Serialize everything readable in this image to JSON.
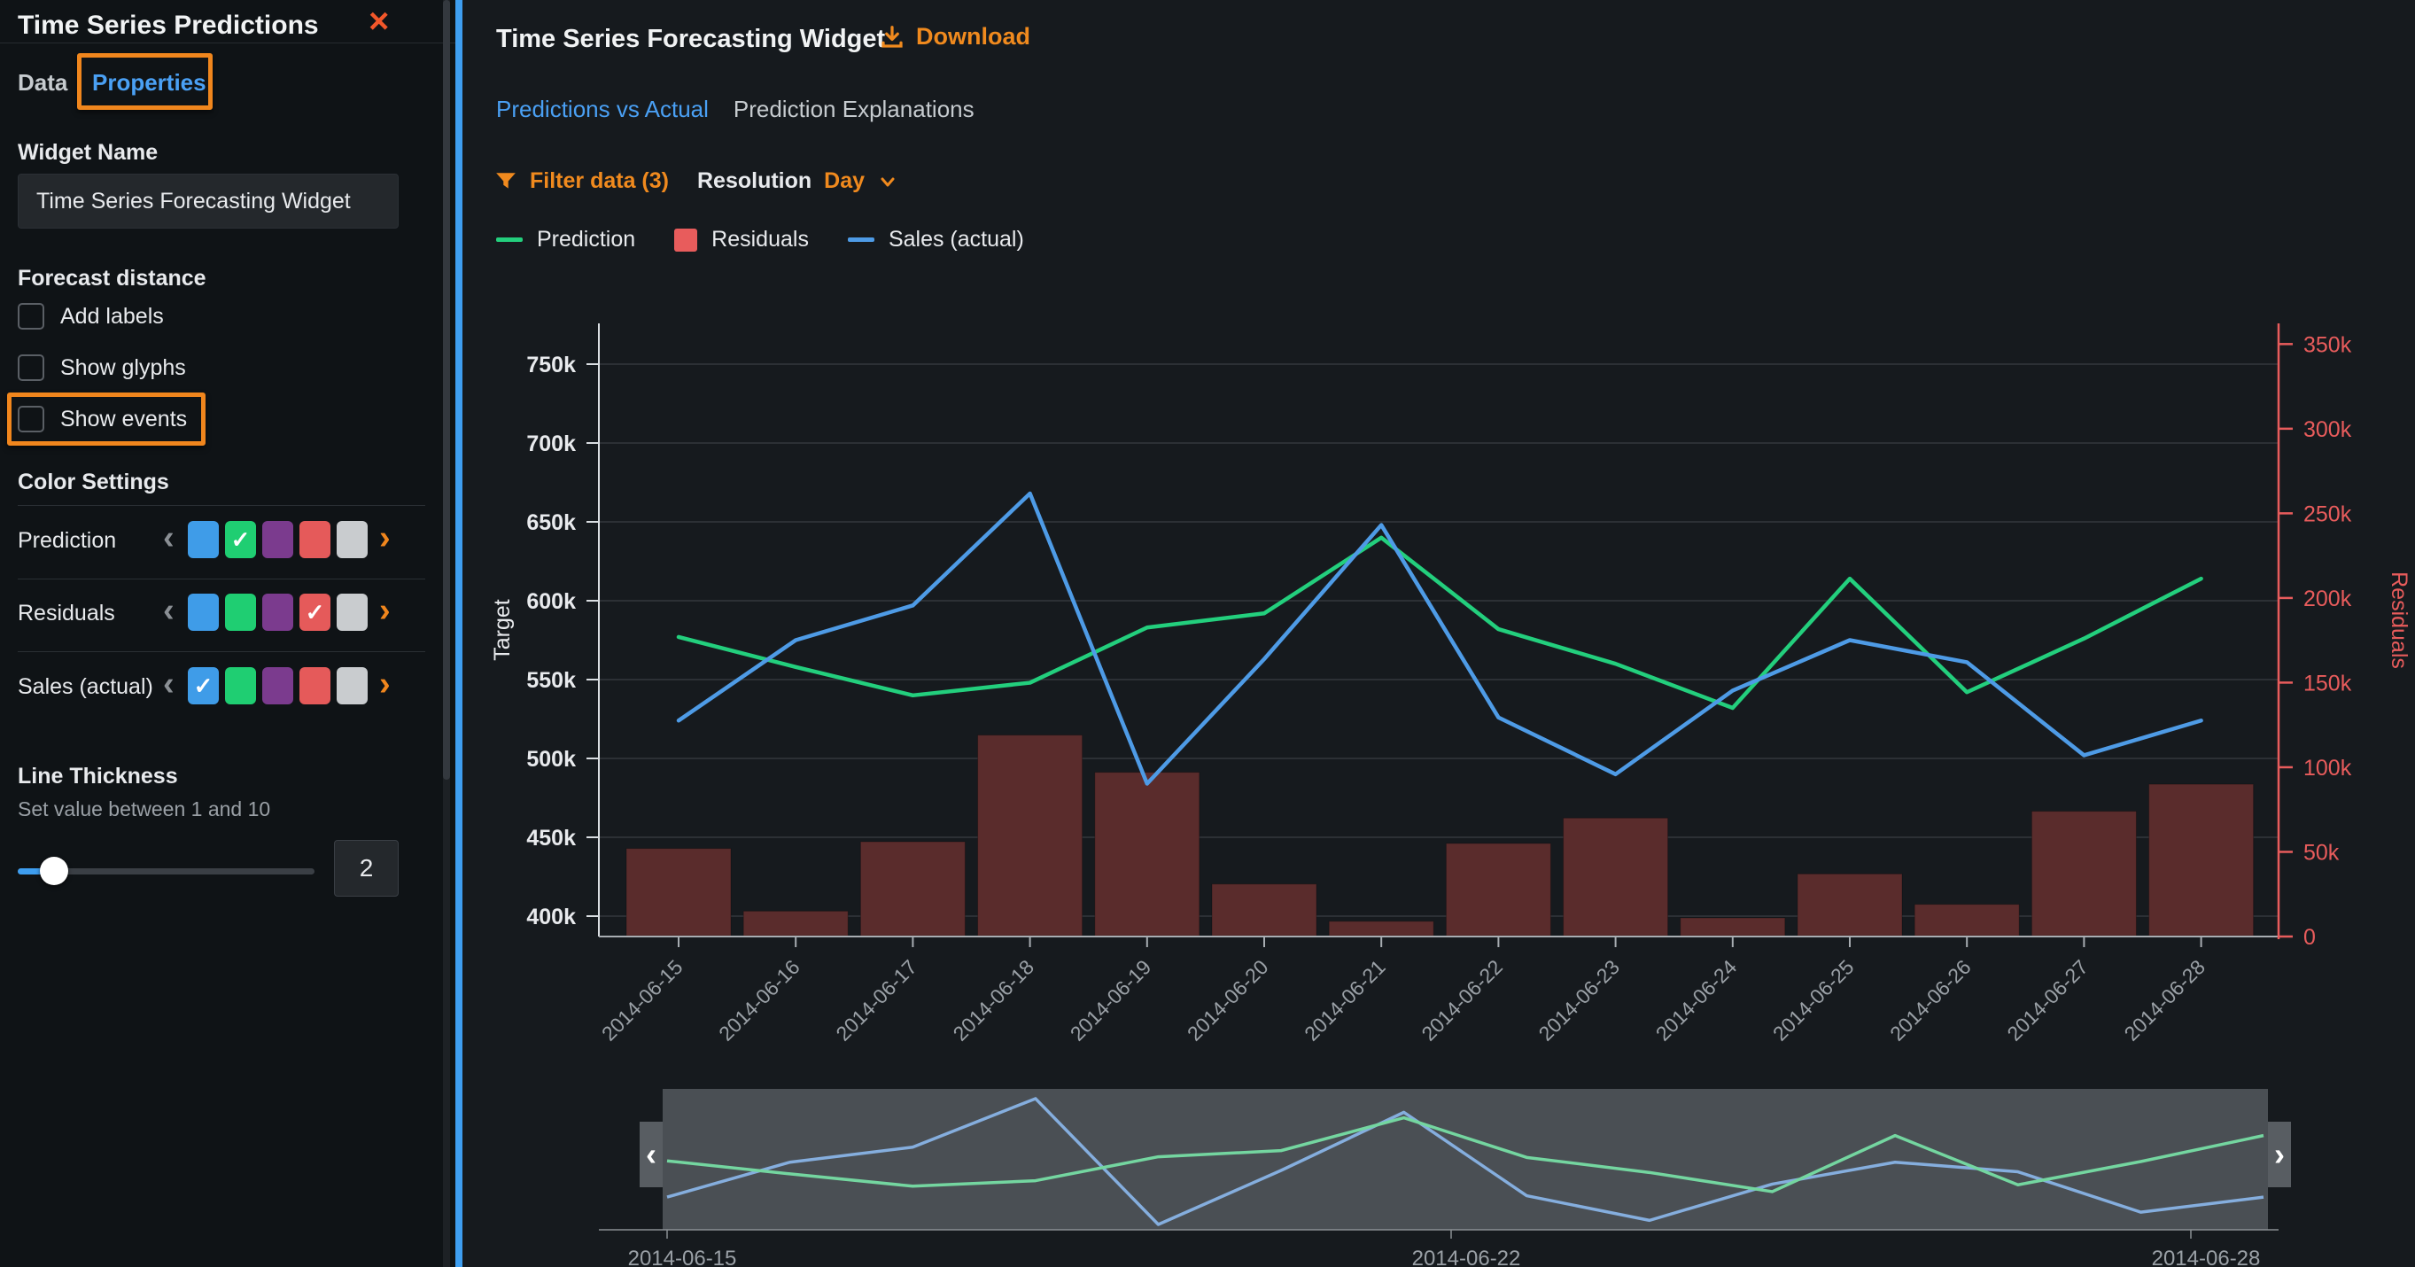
{
  "sidebar": {
    "title": "Time Series Predictions",
    "close_glyph": "×",
    "tabs": [
      {
        "label": "Data",
        "active": false
      },
      {
        "label": "Properties",
        "active": true,
        "highlighted": true
      }
    ],
    "widget_name": {
      "label": "Widget Name",
      "value": "Time Series Forecasting Widget"
    },
    "forecast": {
      "title": "Forecast distance",
      "options": [
        {
          "label": "Add labels",
          "checked": false,
          "highlighted": false
        },
        {
          "label": "Show glyphs",
          "checked": false,
          "highlighted": false
        },
        {
          "label": "Show events",
          "checked": false,
          "highlighted": true
        }
      ]
    },
    "colors": {
      "title": "Color Settings",
      "palette": [
        "#3F9CE8",
        "#1FCE72",
        "#7B3B8E",
        "#E55A5A",
        "#C9CCCF"
      ],
      "check_glyph": "✓",
      "chevron_left": "‹",
      "chevron_right": "›",
      "rows": [
        {
          "label": "Prediction",
          "selected_index": 1
        },
        {
          "label": "Residuals",
          "selected_index": 3
        },
        {
          "label": "Sales (actual)",
          "selected_index": 0
        }
      ]
    },
    "thickness": {
      "title": "Line Thickness",
      "hint": "Set value between 1 and 10",
      "value": "2"
    }
  },
  "main": {
    "title": "Time Series Forecasting Widget",
    "download_label": "Download",
    "view_tabs": [
      {
        "label": "Predictions vs Actual",
        "active": true
      },
      {
        "label": "Prediction Explanations",
        "active": false
      }
    ],
    "toolbar": {
      "filter_label": "Filter data (3)",
      "resolution_label": "Resolution",
      "resolution_value": "Day"
    },
    "legend": [
      {
        "label": "Prediction",
        "marker": "line",
        "color": "#23CF7D"
      },
      {
        "label": "Residuals",
        "marker": "square",
        "color": "#E85C5C"
      },
      {
        "label": "Sales (actual)",
        "marker": "line",
        "color": "#4E9BE6"
      }
    ]
  },
  "chart_data": {
    "type": "line+bar",
    "x": [
      "2014-06-15",
      "2014-06-16",
      "2014-06-17",
      "2014-06-18",
      "2014-06-19",
      "2014-06-20",
      "2014-06-21",
      "2014-06-22",
      "2014-06-23",
      "2014-06-24",
      "2014-06-25",
      "2014-06-26",
      "2014-06-27",
      "2014-06-28"
    ],
    "series": [
      {
        "name": "Prediction",
        "type": "line",
        "axis": "left",
        "color": "#23CF7D",
        "values_k": [
          577,
          558,
          540,
          548,
          583,
          592,
          640,
          582,
          560,
          532,
          614,
          542,
          576,
          614
        ]
      },
      {
        "name": "Sales (actual)",
        "type": "line",
        "axis": "left",
        "color": "#4E9BE6",
        "values_k": [
          524,
          575,
          597,
          668,
          484,
          563,
          648,
          526,
          490,
          543,
          575,
          561,
          502,
          524
        ]
      },
      {
        "name": "Residuals",
        "type": "bar",
        "axis": "right",
        "color": "#5A2C2C",
        "values_k": [
          52,
          15,
          56,
          119,
          97,
          31,
          9,
          55,
          70,
          11,
          37,
          19,
          74,
          90
        ]
      }
    ],
    "left_axis": {
      "title": "Target",
      "tick_values_k": [
        750,
        700,
        650,
        600,
        550,
        500,
        450,
        400
      ],
      "unit": "k",
      "color": "#E8EAED"
    },
    "right_axis": {
      "title": "Residuals",
      "tick_values_k": [
        350,
        300,
        250,
        200,
        150,
        100,
        50,
        0
      ],
      "unit": "k",
      "color": "#E85C5C"
    },
    "grid": true,
    "legend_position": "top-left",
    "navigator": {
      "labels": [
        "2014-06-15",
        "2014-06-22",
        "2014-06-28"
      ],
      "arrow_left": "‹",
      "arrow_right": "›",
      "band_color": "#4A4F54",
      "line_colors": {
        "prediction": "#74D6A0",
        "sales": "#85AEDE"
      }
    }
  }
}
